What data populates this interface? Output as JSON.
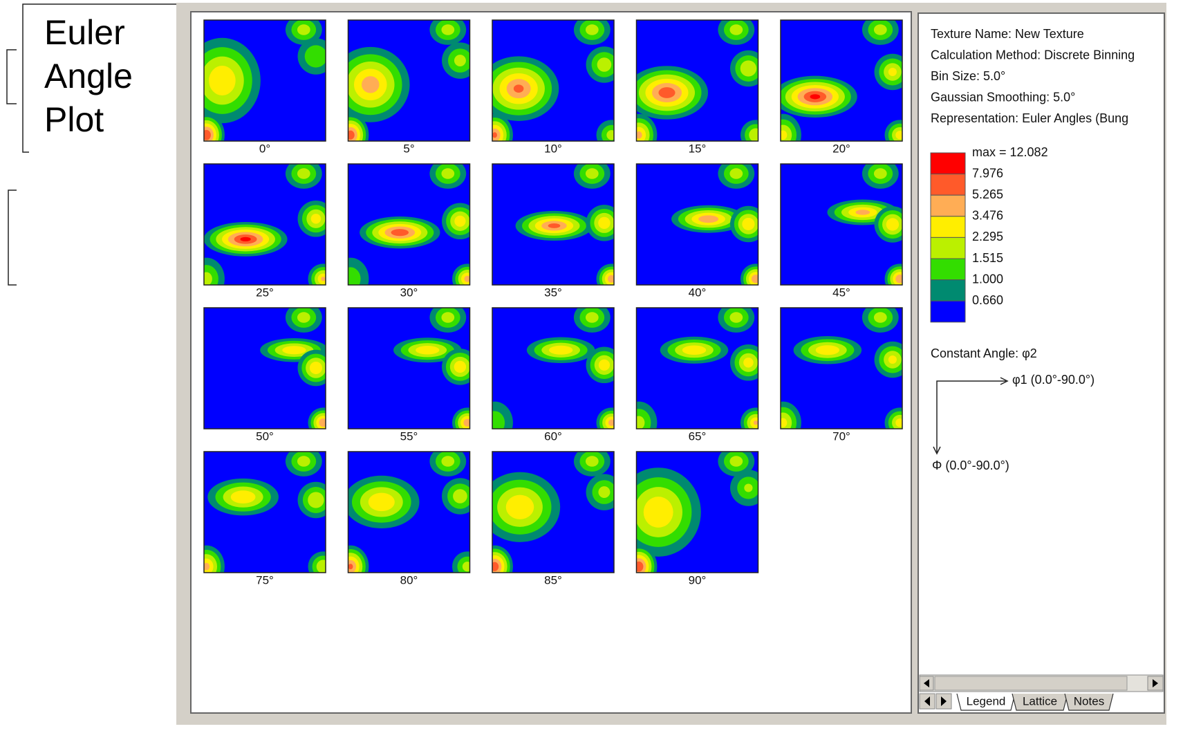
{
  "title": "Euler Angle Plot",
  "plots": [
    "0°",
    "5°",
    "10°",
    "15°",
    "20°",
    "25°",
    "30°",
    "35°",
    "40°",
    "45°",
    "50°",
    "55°",
    "60°",
    "65°",
    "70°",
    "75°",
    "80°",
    "85°",
    "90°"
  ],
  "info": [
    "Texture Name: New Texture",
    "Calculation Method: Discrete Binning",
    "Bin Size: 5.0°",
    "Gaussian Smoothing: 5.0°",
    "Representation: Euler Angles (Bung"
  ],
  "legend": {
    "levels": [
      {
        "label": "max = 12.082",
        "color": "#ff0000"
      },
      {
        "label": "7.976",
        "color": "#ff5a2a"
      },
      {
        "label": "5.265",
        "color": "#ffad55"
      },
      {
        "label": "3.476",
        "color": "#ffee00"
      },
      {
        "label": "2.295",
        "color": "#bbf000"
      },
      {
        "label": "1.515",
        "color": "#33dd00"
      },
      {
        "label": "1.000",
        "color": "#008a70"
      },
      {
        "label": "0.660",
        "color": "#0000ff"
      }
    ]
  },
  "constant_angle": "Constant Angle: φ2",
  "x_axis": "φ1 (0.0°-90.0°)",
  "y_axis": "Φ (0.0°-90.0°)",
  "tabs": [
    "Legend",
    "Lattice",
    "Notes"
  ]
}
